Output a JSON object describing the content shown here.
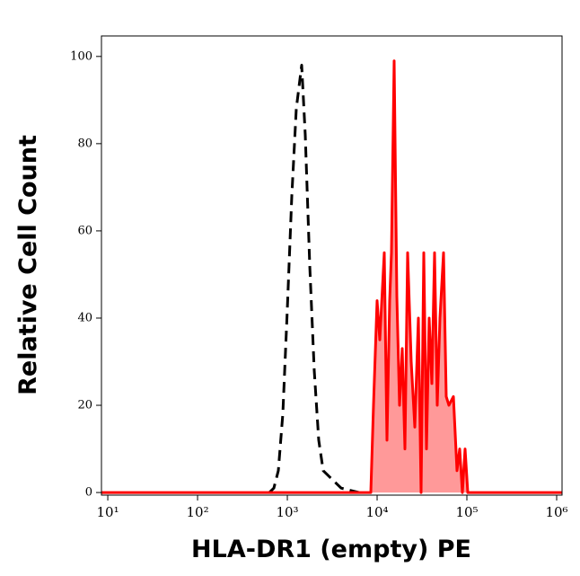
{
  "chart_data": {
    "type": "line",
    "x_label": "HLA-DR1 (empty) PE",
    "y_label": "Relative Cell Count",
    "x_scale": "log",
    "xlim": [
      8.5,
      1148154
    ],
    "ylim": [
      -0.6,
      104.7
    ],
    "xticks": [
      {
        "value": 10,
        "label": "10¹"
      },
      {
        "value": 100,
        "label": "10²"
      },
      {
        "value": 1000,
        "label": "10³"
      },
      {
        "value": 10000,
        "label": "10⁴"
      },
      {
        "value": 100000,
        "label": "10⁵"
      },
      {
        "value": 1000000,
        "label": "10⁶"
      }
    ],
    "yticks": [
      0,
      20,
      40,
      60,
      80,
      100
    ],
    "series": [
      {
        "color": "#000000",
        "dashed": true,
        "x": [
          631,
          708,
          794,
          891,
          1000,
          1122,
          1259,
          1445,
          1585,
          1778,
          1995,
          2239,
          2512,
          3162,
          3981,
          5012,
          6310
        ],
        "values": [
          0,
          1,
          5,
          18,
          42,
          68,
          88,
          98,
          82,
          52,
          28,
          12,
          5,
          3,
          1,
          0.5,
          0
        ]
      },
      {
        "color": "#ff0000",
        "fill_color": "#ff9999",
        "dashed": false,
        "x": [
          8.5,
          8511,
          9120,
          10000,
          10715,
          12023,
          12882,
          13804,
          14454,
          15488,
          16596,
          17783,
          19055,
          20417,
          21878,
          23988,
          26303,
          28840,
          30903,
          33113,
          35481,
          38019,
          40738,
          43652,
          46774,
          50119,
          54954,
          58884,
          63096,
          70795,
          77625,
          83176,
          89125,
          95499,
          102329,
          1148154
        ],
        "values": [
          0,
          0,
          20,
          44,
          35,
          55,
          12,
          44,
          55,
          99,
          45,
          20,
          33,
          10,
          55,
          30,
          15,
          40,
          0,
          55,
          10,
          40,
          25,
          55,
          20,
          40,
          55,
          22,
          20,
          22,
          5,
          10,
          0,
          10,
          0,
          0
        ]
      }
    ]
  }
}
